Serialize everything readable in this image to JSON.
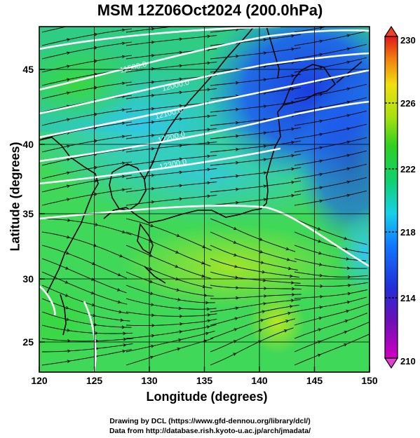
{
  "title": "MSM 12Z06Oct2024 (200.0hPa)",
  "x_axis": {
    "label": "Longitude (degrees)",
    "ticks": [
      "120",
      "125",
      "130",
      "135",
      "140",
      "145",
      "150"
    ]
  },
  "y_axis": {
    "label": "Latitude  (degrees)",
    "ticks": [
      "25",
      "30",
      "35",
      "40",
      "45"
    ]
  },
  "colorbar": {
    "min": 210,
    "max": 230,
    "labels": [
      "230",
      "226",
      "222",
      "218",
      "214",
      "210"
    ]
  },
  "contour_labels": [
    "11500.0",
    "12000.0",
    "12100.0",
    "12200.0",
    "12300.0"
  ],
  "credits": {
    "line1": "Drawing by DCL (https://www.gfd-dennou.org/library/dcl/)",
    "line2": "Data from http://database.rish.kyoto-u.ac.jp/arch/jmadata/"
  }
}
